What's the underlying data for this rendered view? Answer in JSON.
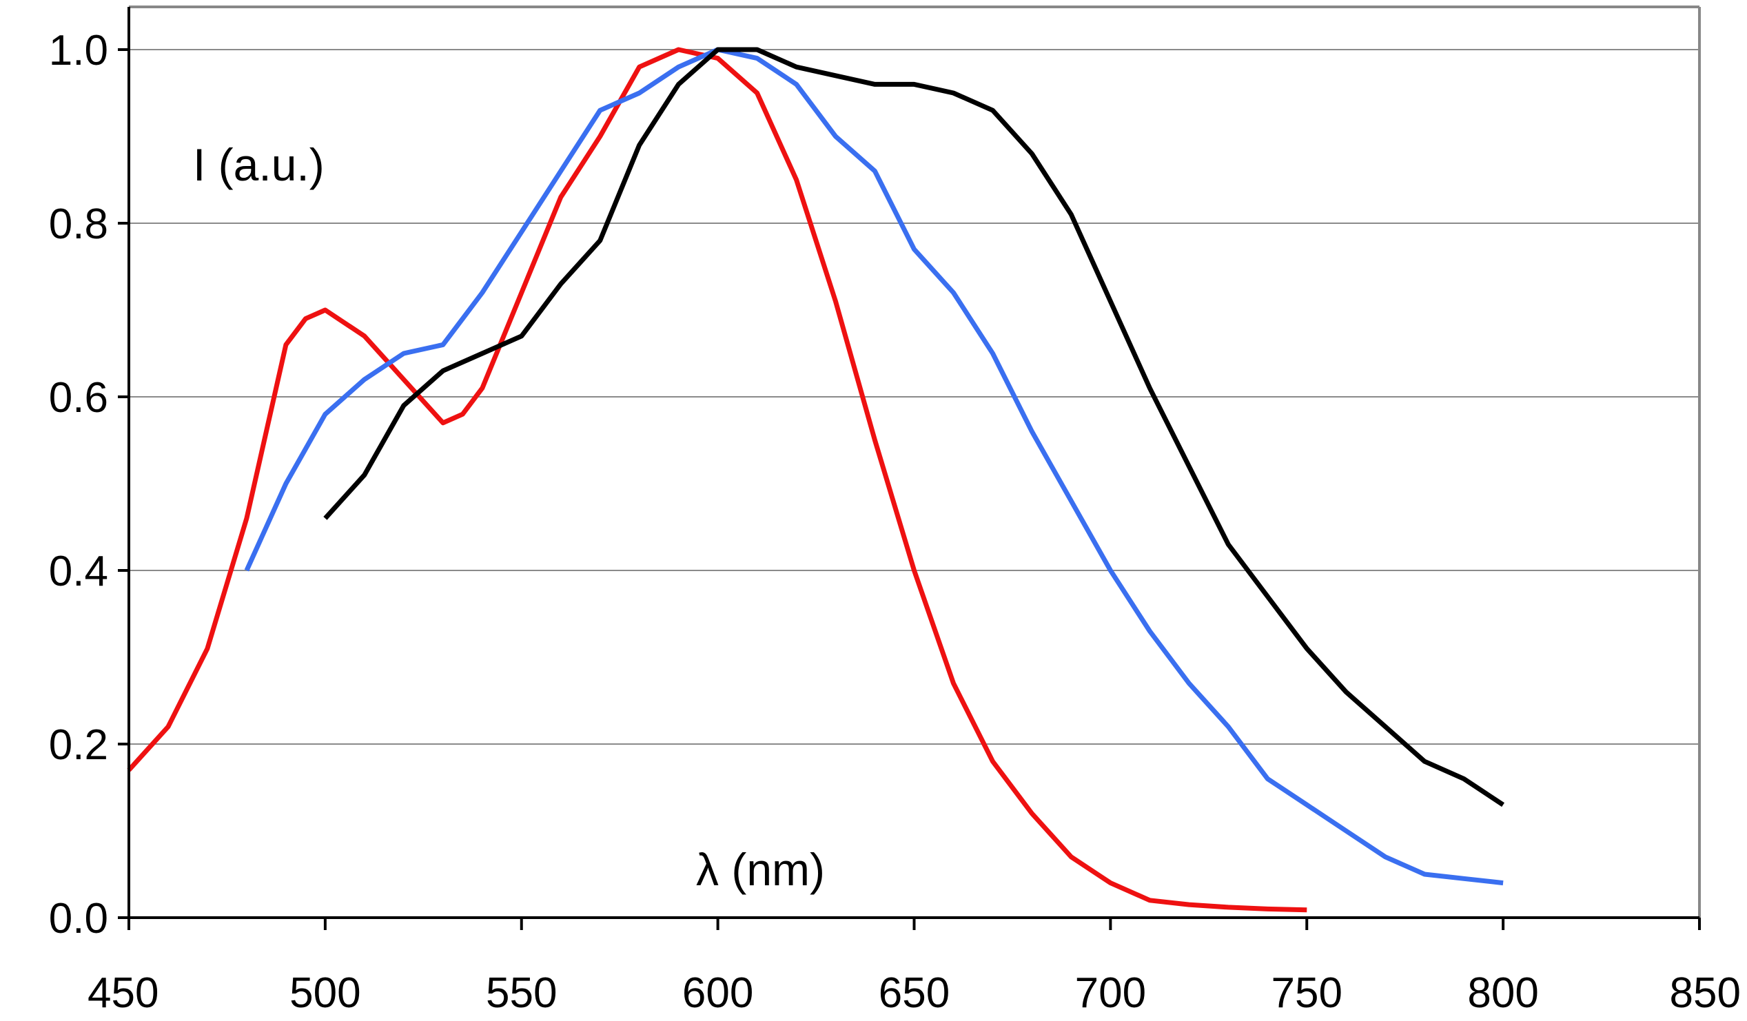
{
  "chart_data": {
    "type": "line",
    "title": "",
    "xlabel": "λ (nm)",
    "ylabel": "I (a.u.)",
    "xlim": [
      450,
      850
    ],
    "ylim": [
      0.0,
      1.0
    ],
    "x_ticks": [
      "450",
      "500",
      "550",
      "600",
      "650",
      "700",
      "750",
      "800",
      "850"
    ],
    "y_ticks": [
      "0.0",
      "0.2",
      "0.4",
      "0.6",
      "0.8",
      "1.0"
    ],
    "grid": "horizontal",
    "legend": "none",
    "series": [
      {
        "name": "red-curve",
        "color": "#ee1111",
        "points": [
          [
            450,
            0.17
          ],
          [
            460,
            0.22
          ],
          [
            470,
            0.31
          ],
          [
            480,
            0.46
          ],
          [
            490,
            0.66
          ],
          [
            495,
            0.69
          ],
          [
            500,
            0.7
          ],
          [
            510,
            0.67
          ],
          [
            520,
            0.62
          ],
          [
            530,
            0.57
          ],
          [
            535,
            0.58
          ],
          [
            540,
            0.61
          ],
          [
            550,
            0.72
          ],
          [
            560,
            0.83
          ],
          [
            570,
            0.9
          ],
          [
            580,
            0.98
          ],
          [
            590,
            1.0
          ],
          [
            600,
            0.99
          ],
          [
            610,
            0.95
          ],
          [
            620,
            0.85
          ],
          [
            630,
            0.71
          ],
          [
            640,
            0.55
          ],
          [
            650,
            0.4
          ],
          [
            660,
            0.27
          ],
          [
            670,
            0.18
          ],
          [
            680,
            0.12
          ],
          [
            690,
            0.07
          ],
          [
            700,
            0.04
          ],
          [
            710,
            0.02
          ],
          [
            720,
            0.015
          ],
          [
            730,
            0.012
          ],
          [
            740,
            0.01
          ],
          [
            750,
            0.009
          ]
        ]
      },
      {
        "name": "blue-curve",
        "color": "#3a6ff0",
        "points": [
          [
            480,
            0.4
          ],
          [
            490,
            0.5
          ],
          [
            495,
            0.54
          ],
          [
            500,
            0.58
          ],
          [
            510,
            0.62
          ],
          [
            520,
            0.65
          ],
          [
            530,
            0.66
          ],
          [
            535,
            0.69
          ],
          [
            540,
            0.72
          ],
          [
            550,
            0.79
          ],
          [
            560,
            0.86
          ],
          [
            570,
            0.93
          ],
          [
            580,
            0.95
          ],
          [
            590,
            0.98
          ],
          [
            600,
            1.0
          ],
          [
            610,
            0.99
          ],
          [
            620,
            0.96
          ],
          [
            630,
            0.9
          ],
          [
            640,
            0.86
          ],
          [
            650,
            0.77
          ],
          [
            660,
            0.72
          ],
          [
            670,
            0.65
          ],
          [
            680,
            0.56
          ],
          [
            690,
            0.48
          ],
          [
            700,
            0.4
          ],
          [
            710,
            0.33
          ],
          [
            720,
            0.27
          ],
          [
            730,
            0.22
          ],
          [
            740,
            0.16
          ],
          [
            750,
            0.13
          ],
          [
            760,
            0.1
          ],
          [
            770,
            0.07
          ],
          [
            780,
            0.05
          ],
          [
            790,
            0.045
          ],
          [
            800,
            0.04
          ]
        ]
      },
      {
        "name": "black-curve",
        "color": "#000000",
        "points": [
          [
            500,
            0.46
          ],
          [
            510,
            0.51
          ],
          [
            520,
            0.59
          ],
          [
            530,
            0.63
          ],
          [
            540,
            0.65
          ],
          [
            550,
            0.67
          ],
          [
            560,
            0.73
          ],
          [
            570,
            0.78
          ],
          [
            580,
            0.89
          ],
          [
            590,
            0.96
          ],
          [
            600,
            1.0
          ],
          [
            610,
            1.0
          ],
          [
            620,
            0.98
          ],
          [
            630,
            0.97
          ],
          [
            640,
            0.96
          ],
          [
            650,
            0.96
          ],
          [
            660,
            0.95
          ],
          [
            670,
            0.93
          ],
          [
            680,
            0.88
          ],
          [
            690,
            0.81
          ],
          [
            700,
            0.71
          ],
          [
            710,
            0.61
          ],
          [
            720,
            0.52
          ],
          [
            730,
            0.43
          ],
          [
            740,
            0.37
          ],
          [
            750,
            0.31
          ],
          [
            760,
            0.26
          ],
          [
            770,
            0.22
          ],
          [
            780,
            0.18
          ],
          [
            790,
            0.16
          ],
          [
            800,
            0.13
          ]
        ]
      }
    ]
  }
}
